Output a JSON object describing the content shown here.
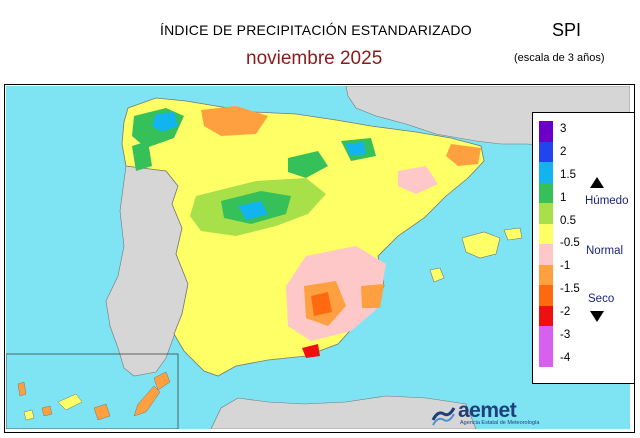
{
  "header": {
    "title": "ÍNDICE DE PRECIPITACIÓN ESTANDARIZADO",
    "period": "noviembre  2025",
    "index_name": "SPI",
    "scale_note": "(escala de 3 años)"
  },
  "legend": {
    "labels": [
      "3",
      "2",
      "1.5",
      "1",
      "0.5",
      "-0.5",
      "-1",
      "-1.5",
      "-2",
      "-3",
      "-4"
    ],
    "colors": [
      "#6a00c8",
      "#2244ee",
      "#12b4f0",
      "#35c05a",
      "#a8e04a",
      "#ffff66",
      "#ffc8c8",
      "#ffa040",
      "#ff6a10",
      "#ee1010",
      "#d860f0"
    ],
    "categories": {
      "wet": "Húmedo",
      "normal": "Normal",
      "dry": "Seco"
    }
  },
  "colors": {
    "sea": "#7ee3f2",
    "neighbor_land": "#d6d6d6",
    "title_red": "#8b1a1a",
    "category_text": "#1a237e"
  },
  "logo": {
    "name": "aemet",
    "tagline": "Agencia Estatal de Meteorología"
  }
}
